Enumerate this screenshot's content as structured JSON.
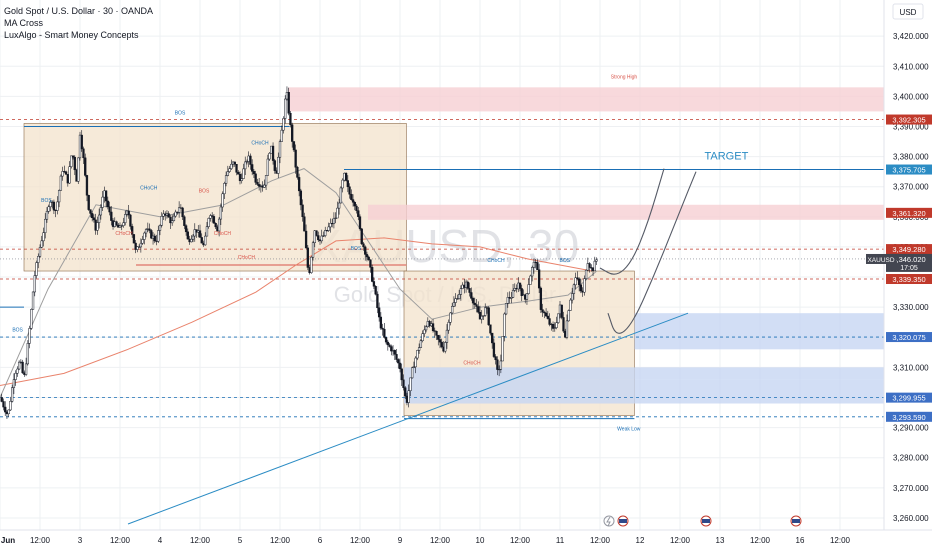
{
  "header": {
    "symbol_title": "Gold Spot / U.S. Dollar · 30 · OANDA",
    "indicator_1": "MA Cross",
    "indicator_2": "LuxAlgo - Smart Money Concepts",
    "currency": "USD"
  },
  "watermark": {
    "main": "XAUUSD, 30",
    "sub": "Gold Spot / U.S. Dollar"
  },
  "colors": {
    "bull": "#26a69a",
    "bear": "#ef5350",
    "candle": "#131722",
    "zone_tan": "#f3e3cc",
    "zone_pink": "#f6d0d3",
    "zone_blue": "#c7d6f2",
    "trend": "#2b8cc4",
    "ma_slow": "#e9836c",
    "ma_fast": "#9e9e9e",
    "grid": "#eef0f3"
  },
  "chart_data": {
    "type": "candlestick",
    "title": "Gold Spot / U.S. Dollar · 30 · OANDA",
    "ylim": [
      3256,
      3432
    ],
    "y_ticks": [
      3260,
      3270,
      3280,
      3290,
      3300,
      3310,
      3320,
      3330,
      3340,
      3350,
      3360,
      3370,
      3380,
      3390,
      3400,
      3410,
      3420
    ],
    "x_range": [
      0,
      11.05
    ],
    "x_ticks": [
      {
        "t": 0.0,
        "label": "Jun",
        "bold": true
      },
      {
        "t": 0.5,
        "label": "12:00"
      },
      {
        "t": 1.0,
        "label": "3"
      },
      {
        "t": 1.5,
        "label": "12:00"
      },
      {
        "t": 2.0,
        "label": "4"
      },
      {
        "t": 2.5,
        "label": "12:00"
      },
      {
        "t": 3.0,
        "label": "5"
      },
      {
        "t": 3.5,
        "label": "12:00"
      },
      {
        "t": 4.0,
        "label": "6"
      },
      {
        "t": 4.5,
        "label": "12:00"
      },
      {
        "t": 5.0,
        "label": "9"
      },
      {
        "t": 5.5,
        "label": "12:00"
      },
      {
        "t": 6.0,
        "label": "10"
      },
      {
        "t": 6.5,
        "label": "12:00"
      },
      {
        "t": 7.0,
        "label": "11"
      },
      {
        "t": 7.5,
        "label": "12:00"
      },
      {
        "t": 8.0,
        "label": "12"
      },
      {
        "t": 8.5,
        "label": "12:00"
      },
      {
        "t": 9.0,
        "label": "13"
      },
      {
        "t": 9.5,
        "label": "12:00"
      },
      {
        "t": 10.0,
        "label": "16"
      },
      {
        "t": 10.5,
        "label": "12:00"
      }
    ],
    "price_path": [
      [
        0.0,
        3300
      ],
      [
        0.1,
        3294
      ],
      [
        0.18,
        3308
      ],
      [
        0.25,
        3312
      ],
      [
        0.3,
        3306
      ],
      [
        0.36,
        3320
      ],
      [
        0.43,
        3340
      ],
      [
        0.5,
        3350
      ],
      [
        0.55,
        3356
      ],
      [
        0.62,
        3366
      ],
      [
        0.7,
        3362
      ],
      [
        0.78,
        3376
      ],
      [
        0.85,
        3372
      ],
      [
        0.9,
        3382
      ],
      [
        0.96,
        3372
      ],
      [
        1.0,
        3388
      ],
      [
        1.04,
        3380
      ],
      [
        1.1,
        3364
      ],
      [
        1.2,
        3356
      ],
      [
        1.3,
        3368
      ],
      [
        1.4,
        3358
      ],
      [
        1.5,
        3356
      ],
      [
        1.6,
        3362
      ],
      [
        1.7,
        3348
      ],
      [
        1.82,
        3356
      ],
      [
        1.95,
        3352
      ],
      [
        2.05,
        3362
      ],
      [
        2.15,
        3358
      ],
      [
        2.25,
        3364
      ],
      [
        2.35,
        3352
      ],
      [
        2.45,
        3356
      ],
      [
        2.55,
        3350
      ],
      [
        2.62,
        3362
      ],
      [
        2.72,
        3356
      ],
      [
        2.82,
        3374
      ],
      [
        2.92,
        3378
      ],
      [
        3.0,
        3372
      ],
      [
        3.1,
        3380
      ],
      [
        3.2,
        3372
      ],
      [
        3.3,
        3370
      ],
      [
        3.38,
        3384
      ],
      [
        3.45,
        3374
      ],
      [
        3.52,
        3388
      ],
      [
        3.58,
        3402
      ],
      [
        3.63,
        3390
      ],
      [
        3.7,
        3376
      ],
      [
        3.8,
        3356
      ],
      [
        3.86,
        3340
      ],
      [
        3.93,
        3356
      ],
      [
        4.0,
        3352
      ],
      [
        4.1,
        3356
      ],
      [
        4.2,
        3360
      ],
      [
        4.3,
        3374
      ],
      [
        4.36,
        3368
      ],
      [
        4.45,
        3364
      ],
      [
        4.52,
        3352
      ],
      [
        4.6,
        3346
      ],
      [
        4.68,
        3336
      ],
      [
        4.74,
        3326
      ],
      [
        4.82,
        3318
      ],
      [
        4.9,
        3316
      ],
      [
        5.0,
        3310
      ],
      [
        5.08,
        3298
      ],
      [
        5.16,
        3310
      ],
      [
        5.25,
        3318
      ],
      [
        5.35,
        3326
      ],
      [
        5.45,
        3320
      ],
      [
        5.55,
        3316
      ],
      [
        5.62,
        3328
      ],
      [
        5.72,
        3334
      ],
      [
        5.82,
        3338
      ],
      [
        5.92,
        3332
      ],
      [
        6.0,
        3326
      ],
      [
        6.08,
        3330
      ],
      [
        6.15,
        3318
      ],
      [
        6.22,
        3308
      ],
      [
        6.26,
        3312
      ],
      [
        6.32,
        3332
      ],
      [
        6.4,
        3334
      ],
      [
        6.48,
        3338
      ],
      [
        6.56,
        3332
      ],
      [
        6.64,
        3342
      ],
      [
        6.7,
        3346
      ],
      [
        6.76,
        3330
      ],
      [
        6.84,
        3326
      ],
      [
        6.92,
        3322
      ],
      [
        7.0,
        3330
      ],
      [
        7.06,
        3320
      ],
      [
        7.12,
        3332
      ],
      [
        7.2,
        3340
      ],
      [
        7.28,
        3334
      ],
      [
        7.34,
        3346
      ],
      [
        7.4,
        3342
      ],
      [
        7.46,
        3346
      ]
    ],
    "ma_slow": [
      [
        0.0,
        3304
      ],
      [
        0.8,
        3308
      ],
      [
        1.6,
        3316
      ],
      [
        2.4,
        3325
      ],
      [
        3.2,
        3335
      ],
      [
        3.7,
        3344
      ],
      [
        4.2,
        3352
      ],
      [
        4.8,
        3353
      ],
      [
        5.4,
        3351
      ],
      [
        6.0,
        3350
      ],
      [
        6.6,
        3346
      ],
      [
        7.0,
        3344
      ],
      [
        7.4,
        3342
      ]
    ],
    "ma_fast": [
      [
        0.0,
        3300
      ],
      [
        0.6,
        3336
      ],
      [
        1.2,
        3364
      ],
      [
        2.0,
        3360
      ],
      [
        2.8,
        3364
      ],
      [
        3.4,
        3372
      ],
      [
        3.8,
        3376
      ],
      [
        4.2,
        3368
      ],
      [
        4.6,
        3352
      ],
      [
        5.0,
        3336
      ],
      [
        5.4,
        3326
      ],
      [
        6.0,
        3330
      ],
      [
        6.6,
        3332
      ],
      [
        7.1,
        3334
      ],
      [
        7.46,
        3342
      ]
    ],
    "zones": [
      {
        "name": "zone-range-left",
        "t0": 0.3,
        "t1": 5.08,
        "y0": 3342,
        "y1": 3391,
        "color": "tan"
      },
      {
        "name": "zone-range-right",
        "t0": 5.05,
        "t1": 7.93,
        "y0": 3294,
        "y1": 3342,
        "color": "tan"
      },
      {
        "name": "zone-strong-high",
        "t0": 3.6,
        "t1": 11.05,
        "y0": 3395,
        "y1": 3403,
        "color": "pink"
      },
      {
        "name": "zone-supply",
        "t0": 4.6,
        "t1": 11.05,
        "y0": 3359,
        "y1": 3364,
        "color": "pink"
      },
      {
        "name": "zone-demand-upper",
        "t0": 7.93,
        "t1": 11.05,
        "y0": 3316,
        "y1": 3328,
        "color": "blue"
      },
      {
        "name": "zone-demand-mid",
        "t0": 5.05,
        "t1": 11.05,
        "y0": 3306,
        "y1": 3310,
        "color": "blue"
      },
      {
        "name": "zone-demand-lower",
        "t0": 5.05,
        "t1": 11.05,
        "y0": 3298,
        "y1": 3306,
        "color": "blue"
      }
    ],
    "hlines": [
      {
        "name": "bos-line-top",
        "t0": 0.3,
        "t1": 3.62,
        "y": 3390,
        "color": "#1a6fb5",
        "label": "BOS"
      },
      {
        "name": "choch-line-bottom",
        "t0": 1.7,
        "t1": 5.08,
        "y": 3344,
        "color": "#d8544a",
        "label": "CHoCH"
      },
      {
        "name": "level-line-top",
        "t0": 4.3,
        "t1": 11.05,
        "y": 3375.7,
        "color": "#1a6fb5"
      },
      {
        "name": "level-line-left",
        "t0": 0.0,
        "t1": 0.3,
        "y": 3330,
        "color": "#1a6fb5"
      },
      {
        "name": "weak-low-line",
        "t0": 5.05,
        "t1": 7.93,
        "y": 3293,
        "color": "#1a6fb5",
        "label": "Weak Low"
      }
    ],
    "dashed_lines": [
      {
        "y": 3392.305,
        "color": "#c0392b"
      },
      {
        "y": 3349.28,
        "color": "#c0392b"
      },
      {
        "y": 3339.35,
        "color": "#c0392b"
      },
      {
        "y": 3320.075,
        "color": "#1a6fb5"
      },
      {
        "y": 3299.955,
        "color": "#1a6fb5"
      },
      {
        "y": 3293.59,
        "color": "#1a6fb5"
      }
    ],
    "trendline": {
      "t0": 1.6,
      "y0": 3258,
      "t1": 8.6,
      "y1": 3328
    },
    "projections": [
      [
        [
          7.5,
          3343
        ],
        [
          7.7,
          3340
        ],
        [
          7.9,
          3345
        ],
        [
          8.1,
          3358
        ],
        [
          8.3,
          3376
        ]
      ],
      [
        [
          7.6,
          3328
        ],
        [
          7.7,
          3320
        ],
        [
          7.9,
          3324
        ],
        [
          8.2,
          3342
        ],
        [
          8.5,
          3362
        ],
        [
          8.7,
          3375
        ]
      ]
    ],
    "annotations": [
      {
        "text": "Strong High",
        "t": 7.8,
        "y": 3406,
        "color": "#d8544a"
      },
      {
        "text": "BOS",
        "t": 2.25,
        "y": 3394,
        "color": "#1a6fb5"
      },
      {
        "text": "CHoCH",
        "t": 3.08,
        "y": 3346,
        "color": "#d8544a"
      },
      {
        "text": "TARGET",
        "t": 9.08,
        "y": 3379,
        "color": "#2b8cc4",
        "big": true
      },
      {
        "text": "CHoCH",
        "t": 6.2,
        "y": 3345,
        "color": "#1a6fb5"
      },
      {
        "text": "CHoCH",
        "t": 5.9,
        "y": 3311,
        "color": "#d8544a"
      },
      {
        "text": "CHoCH",
        "t": 3.25,
        "y": 3384,
        "color": "#1a6fb5"
      },
      {
        "text": "CHoCH",
        "t": 2.78,
        "y": 3354,
        "color": "#d8544a"
      },
      {
        "text": "CHoCH",
        "t": 1.55,
        "y": 3354,
        "color": "#d8544a"
      },
      {
        "text": "CHoCH",
        "t": 1.86,
        "y": 3369,
        "color": "#1a6fb5"
      },
      {
        "text": "BOS",
        "t": 0.58,
        "y": 3365,
        "color": "#1a6fb5"
      },
      {
        "text": "BOS",
        "t": 0.22,
        "y": 3322,
        "color": "#1a6fb5"
      },
      {
        "text": "BOS",
        "t": 2.55,
        "y": 3368,
        "color": "#d8544a"
      },
      {
        "text": "BOS",
        "t": 4.45,
        "y": 3349,
        "color": "#1a6fb5"
      },
      {
        "text": "BOS",
        "t": 7.06,
        "y": 3345,
        "color": "#1a6fb5"
      },
      {
        "text": "Weak Low",
        "t": 7.86,
        "y": 3289,
        "color": "#1a6fb5"
      }
    ],
    "price_labels": [
      {
        "value": "3,392.305",
        "y": 3392.305,
        "bg": "#c0392b"
      },
      {
        "value": "3,375.705",
        "y": 3375.705,
        "bg": "#2b8cc4"
      },
      {
        "value": "3,361.320",
        "y": 3361.32,
        "bg": "#c0392b"
      },
      {
        "value": "3,349.280",
        "y": 3349.28,
        "bg": "#c0392b"
      },
      {
        "value": "3,346.020",
        "y": 3346.02,
        "bg": "#434651",
        "sub": "17:05"
      },
      {
        "value": "3,339.350",
        "y": 3339.35,
        "bg": "#c0392b"
      },
      {
        "value": "3,320.075",
        "y": 3320.075,
        "bg": "#3d6fc5"
      },
      {
        "value": "3,299.955",
        "y": 3299.955,
        "bg": "#3d6fc5"
      },
      {
        "value": "3,293.590",
        "y": 3293.59,
        "bg": "#3d6fc5"
      }
    ],
    "symbol_badge": {
      "text": "XAUUSD",
      "y": 3346
    }
  }
}
